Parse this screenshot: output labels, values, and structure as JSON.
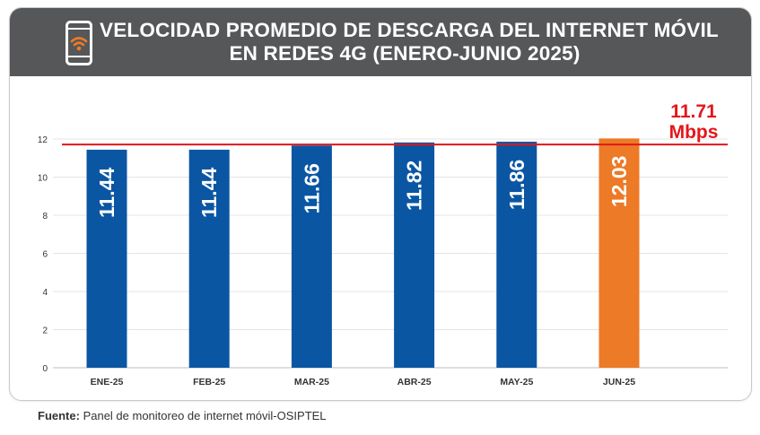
{
  "header": {
    "title_line1": "VELOCIDAD PROMEDIO DE DESCARGA DEL INTERNET MÓVIL",
    "title_line2": "EN REDES 4G (ENERO-JUNIO 2025)",
    "icon": "smartphone-wifi-icon"
  },
  "chart_data": {
    "type": "bar",
    "categories": [
      "ENE-25",
      "FEB-25",
      "MAR-25",
      "ABR-25",
      "MAY-25",
      "JUN-25"
    ],
    "values": [
      11.44,
      11.44,
      11.66,
      11.82,
      11.86,
      12.03
    ],
    "value_labels": [
      "11.44",
      "11.44",
      "11.66",
      "11.82",
      "11.86",
      "12.03"
    ],
    "ylim": [
      0,
      12
    ],
    "yticks": [
      0,
      2,
      4,
      6,
      8,
      10,
      12
    ],
    "grid": true,
    "reference_line": {
      "value": 11.71,
      "label_value": "11.71",
      "label_unit": "Mbps"
    }
  },
  "colors": {
    "bar": "#0a56a3",
    "highlight_bar": "#ec7a26",
    "reference_line": "#e3161b",
    "header_bg": "#555759",
    "icon_accent": "#ec7a26"
  },
  "footer": {
    "source_label": "Fuente:",
    "source_text": " Panel de monitoreo de internet móvil-OSIPTEL"
  }
}
